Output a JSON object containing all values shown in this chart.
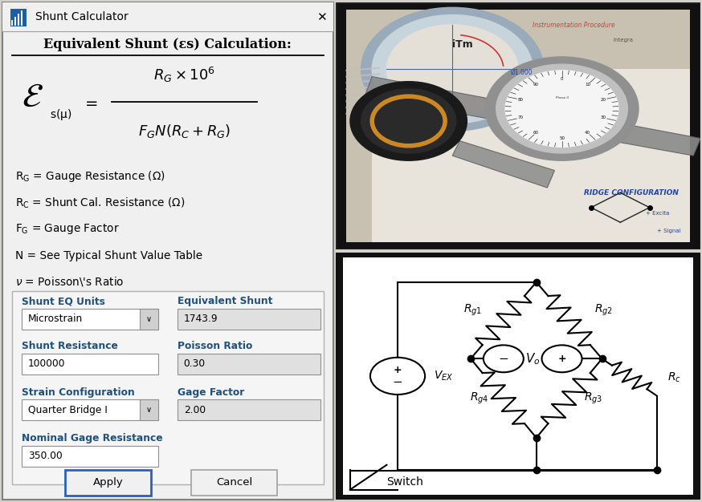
{
  "title": "Shunt Calculator",
  "header_text": "Equivalent Shunt (εs) Calculation:",
  "variables_plain": [
    "R_G = Gauge Resistance (Ω)",
    "R_C = Shunt Cal. Resistance (Ω)",
    "F_G = Gauge Factor",
    "N = See Typical Shunt Value Table",
    "ν = Poisson’s Ratio"
  ],
  "form_labels_left": [
    "Shunt EQ Units",
    "Shunt Resistance",
    "Strain Configuration",
    "Nominal Gage Resistance"
  ],
  "form_values_left": [
    "Microstrain",
    "100000",
    "Quarter Bridge I",
    "350.00"
  ],
  "form_has_dropdown": [
    true,
    false,
    true,
    false
  ],
  "form_labels_right": [
    "Equivalent Shunt",
    "Poisson Ratio",
    "Gage Factor"
  ],
  "form_values_right": [
    "1743.9",
    "0.30",
    "2.00"
  ],
  "btn_apply": "Apply",
  "btn_cancel": "Cancel",
  "label_color": "#205080",
  "field_bg_editable": "#ffffff",
  "field_bg_readonly": "#e8e8e8",
  "dialog_bg": "#f0f0f0",
  "form_panel_bg": "#f5f5f5",
  "border_color": "#aaaaaa",
  "apply_border": "#3060c0",
  "photo_bg_colors": [
    "#8a7a6a",
    "#b0a090",
    "#d0c8b8",
    "#f0ece0"
  ],
  "circuit_border": "#333333",
  "circuit_bg": "#f8f8f8"
}
